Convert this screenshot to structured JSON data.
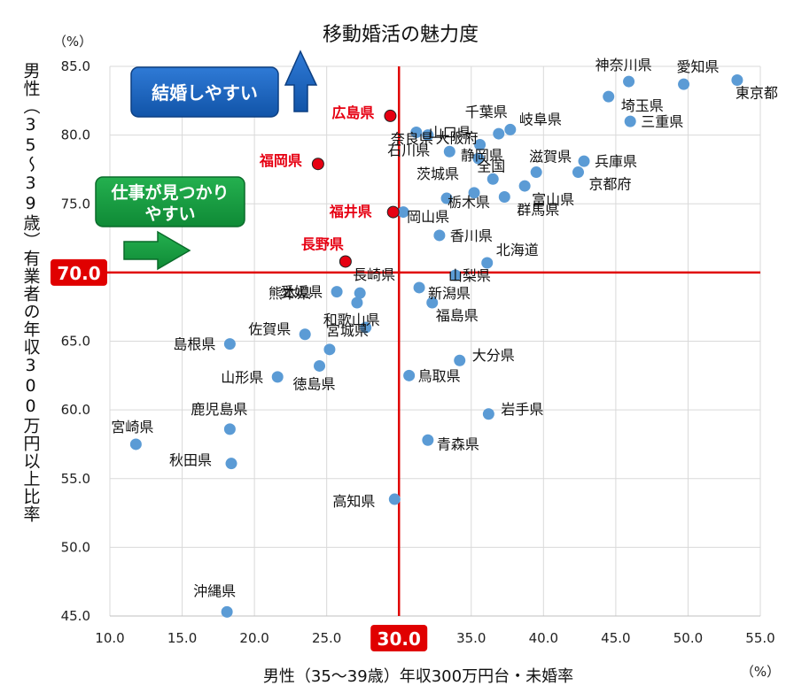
{
  "chart_data": {
    "type": "scatter",
    "title": "移動婚活の魅力度",
    "xlabel": "男性（35～39歳）年収300万円台・未婚率",
    "ylabel": "男性（35～39歳）有業者の年収300万円以上比率",
    "x_unit": "（%）",
    "y_unit": "（%）",
    "xlim": [
      10.0,
      55.0
    ],
    "ylim": [
      45.0,
      85.0
    ],
    "x_ticks": [
      "10.0",
      "15.0",
      "20.0",
      "25.0",
      "30.0",
      "35.0",
      "40.0",
      "45.0",
      "50.0",
      "55.0"
    ],
    "y_ticks": [
      "45.0",
      "50.0",
      "55.0",
      "60.0",
      "65.0",
      "70.0",
      "75.0",
      "80.0",
      "85.0"
    ],
    "grid": true,
    "x_reference": {
      "value": 30.0,
      "label": "30.0",
      "color": "#e00000"
    },
    "y_reference": {
      "value": 70.0,
      "label": "70.0",
      "color": "#e00000"
    },
    "annotations": {
      "marriage": "結婚しやすい",
      "job_line1": "仕事が見つかり",
      "job_line2": "やすい"
    },
    "points": [
      {
        "name": "東京都",
        "x": 53.4,
        "y": 84.0,
        "highlight": false
      },
      {
        "name": "愛知県",
        "x": 49.7,
        "y": 83.7,
        "highlight": false
      },
      {
        "name": "神奈川県",
        "x": 45.9,
        "y": 83.9,
        "highlight": false
      },
      {
        "name": "埼玉県",
        "x": 44.5,
        "y": 82.8,
        "highlight": false
      },
      {
        "name": "三重県",
        "x": 46.0,
        "y": 81.0,
        "highlight": false
      },
      {
        "name": "岐阜県",
        "x": 37.7,
        "y": 80.4,
        "highlight": false
      },
      {
        "name": "千葉県",
        "x": 36.9,
        "y": 80.1,
        "highlight": false
      },
      {
        "name": "山口県",
        "x": 31.2,
        "y": 80.2,
        "highlight": false
      },
      {
        "name": "奈良県",
        "x": 32.0,
        "y": 80.0,
        "highlight": false
      },
      {
        "name": "大阪府",
        "x": 35.6,
        "y": 79.3,
        "highlight": false
      },
      {
        "name": "石川県",
        "x": 33.5,
        "y": 78.8,
        "highlight": false
      },
      {
        "name": "静岡県",
        "x": 35.5,
        "y": 78.3,
        "highlight": false
      },
      {
        "name": "滋賀県",
        "x": 39.5,
        "y": 77.3,
        "highlight": false
      },
      {
        "name": "兵庫県",
        "x": 42.8,
        "y": 78.1,
        "highlight": false
      },
      {
        "name": "京都府",
        "x": 42.4,
        "y": 77.3,
        "highlight": false
      },
      {
        "name": "茨城県",
        "x": 33.3,
        "y": 75.4,
        "highlight": false
      },
      {
        "name": "全国",
        "x": 36.5,
        "y": 76.8,
        "highlight": false
      },
      {
        "name": "富山県",
        "x": 38.7,
        "y": 76.3,
        "highlight": false
      },
      {
        "name": "栃木県",
        "x": 35.2,
        "y": 75.8,
        "highlight": false
      },
      {
        "name": "群馬県",
        "x": 37.3,
        "y": 75.5,
        "highlight": false
      },
      {
        "name": "岡山県",
        "x": 30.3,
        "y": 74.4,
        "highlight": false
      },
      {
        "name": "香川県",
        "x": 32.8,
        "y": 72.7,
        "highlight": false
      },
      {
        "name": "北海道",
        "x": 36.1,
        "y": 70.7,
        "highlight": false
      },
      {
        "name": "山梨県",
        "x": 33.9,
        "y": 69.8,
        "highlight": false
      },
      {
        "name": "長崎県",
        "x": 27.3,
        "y": 68.5,
        "highlight": false
      },
      {
        "name": "愛媛県",
        "x": 25.7,
        "y": 68.6,
        "highlight": false
      },
      {
        "name": "新潟県",
        "x": 31.4,
        "y": 68.9,
        "highlight": false
      },
      {
        "name": "福島県",
        "x": 32.3,
        "y": 67.8,
        "highlight": false
      },
      {
        "name": "熊本県",
        "x": 27.1,
        "y": 67.8,
        "highlight": false
      },
      {
        "name": "和歌山県",
        "x": 27.7,
        "y": 66.0,
        "highlight": false
      },
      {
        "name": "佐賀県",
        "x": 23.5,
        "y": 65.5,
        "highlight": false
      },
      {
        "name": "島根県",
        "x": 18.3,
        "y": 64.8,
        "highlight": false
      },
      {
        "name": "宮城県",
        "x": 25.2,
        "y": 64.4,
        "highlight": false
      },
      {
        "name": "大分県",
        "x": 34.2,
        "y": 63.6,
        "highlight": false
      },
      {
        "name": "山形県",
        "x": 21.6,
        "y": 62.4,
        "highlight": false
      },
      {
        "name": "徳島県",
        "x": 24.5,
        "y": 63.2,
        "highlight": false
      },
      {
        "name": "鳥取県",
        "x": 30.7,
        "y": 62.5,
        "highlight": false
      },
      {
        "name": "岩手県",
        "x": 36.2,
        "y": 59.7,
        "highlight": false
      },
      {
        "name": "鹿児島県",
        "x": 18.3,
        "y": 58.6,
        "highlight": false
      },
      {
        "name": "青森県",
        "x": 32.0,
        "y": 57.8,
        "highlight": false
      },
      {
        "name": "宮崎県",
        "x": 11.8,
        "y": 57.5,
        "highlight": false
      },
      {
        "name": "秋田県",
        "x": 18.4,
        "y": 56.1,
        "highlight": false
      },
      {
        "name": "高知県",
        "x": 29.7,
        "y": 53.5,
        "highlight": false
      },
      {
        "name": "沖縄県",
        "x": 18.1,
        "y": 45.3,
        "highlight": false
      },
      {
        "name": "広島県",
        "x": 29.4,
        "y": 81.4,
        "highlight": true
      },
      {
        "name": "福岡県",
        "x": 24.4,
        "y": 77.9,
        "highlight": true
      },
      {
        "name": "福井県",
        "x": 29.6,
        "y": 74.4,
        "highlight": true
      },
      {
        "name": "長野県",
        "x": 26.3,
        "y": 70.8,
        "highlight": true
      }
    ]
  }
}
